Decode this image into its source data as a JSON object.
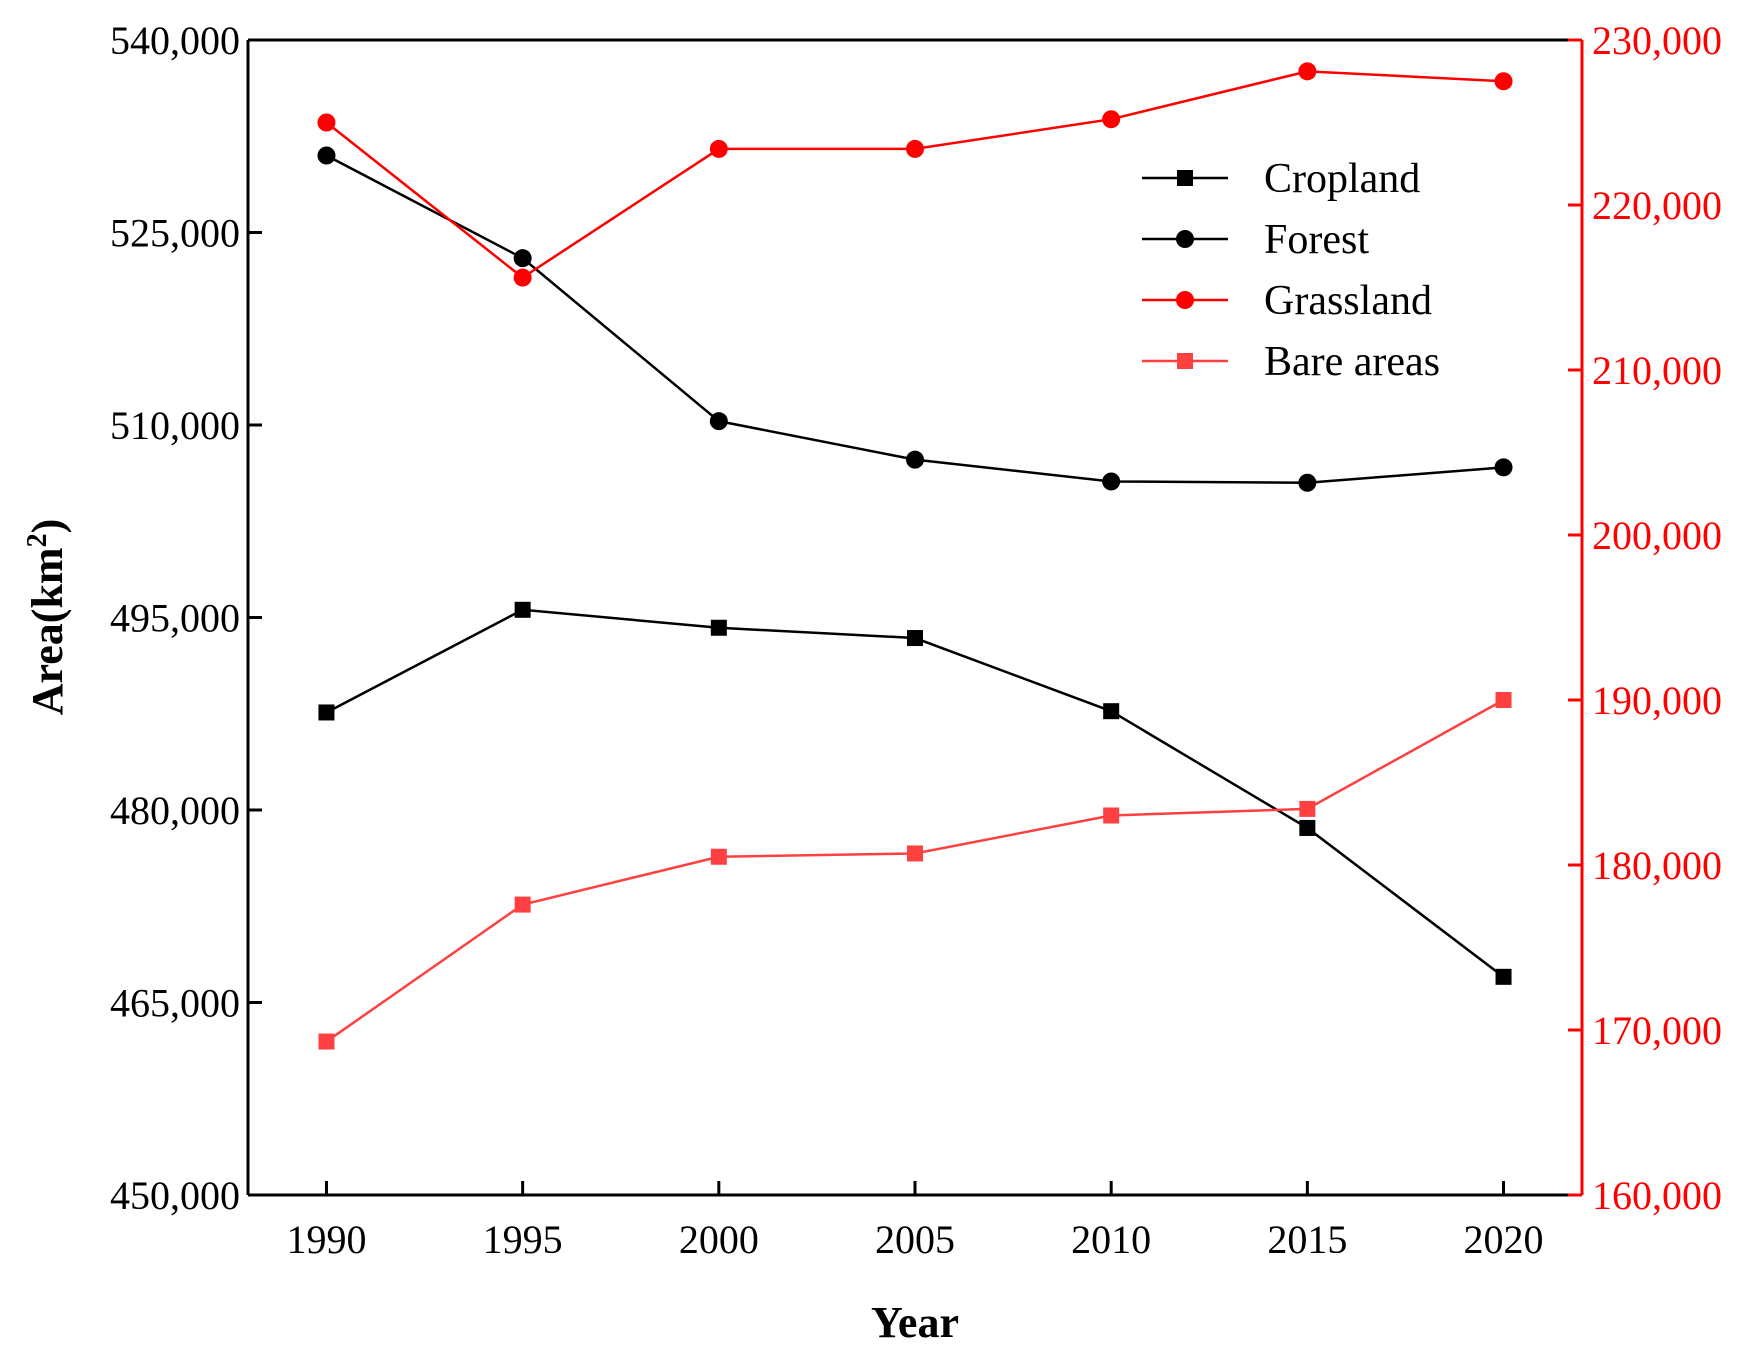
{
  "chart_data": {
    "type": "line",
    "xlabel": "Year",
    "ylabel": "Area(km",
    "ylabel_superscript": "2",
    "ylabel_close": ")",
    "x": [
      1990,
      1995,
      2000,
      2005,
      2010,
      2015,
      2020
    ],
    "x_tick_labels": [
      "1990",
      "1995",
      "2000",
      "2005",
      "2010",
      "2015",
      "2020"
    ],
    "xlim": [
      1988,
      2022
    ],
    "y_left": {
      "range": [
        450000,
        540000
      ],
      "tick_labels": [
        "450,000",
        "465,000",
        "480,000",
        "495,000",
        "510,000",
        "525,000",
        "540,000"
      ],
      "ticks": [
        450000,
        465000,
        480000,
        495000,
        510000,
        525000,
        540000
      ],
      "color": "#000000"
    },
    "y_right": {
      "range": [
        160000,
        230000
      ],
      "tick_labels": [
        "160,000",
        "170,000",
        "180,000",
        "190,000",
        "200,000",
        "210,000",
        "220,000",
        "230,000"
      ],
      "ticks": [
        160000,
        170000,
        180000,
        190000,
        200000,
        210000,
        220000,
        230000
      ],
      "color": "#ff0000"
    },
    "series": [
      {
        "name": "Cropland",
        "axis": "left",
        "marker": "square",
        "color": "#000000",
        "values": [
          487600,
          495600,
          494200,
          493400,
          487700,
          478600,
          467000
        ]
      },
      {
        "name": "Forest",
        "axis": "left",
        "marker": "circle",
        "color": "#000000",
        "values": [
          531000,
          523000,
          510300,
          507300,
          505600,
          505500,
          506700
        ]
      },
      {
        "name": "Grassland",
        "axis": "right",
        "marker": "circle",
        "color": "#ff0000",
        "values": [
          225000,
          215600,
          223400,
          223400,
          225200,
          228100,
          227500
        ]
      },
      {
        "name": "Bare areas",
        "axis": "right",
        "marker": "square",
        "color": "#ff4040",
        "values": [
          169300,
          177600,
          180500,
          180700,
          183000,
          183400,
          190000
        ]
      }
    ],
    "legend": {
      "position": "top-right",
      "entries": [
        "Cropland",
        "Forest",
        "Grassland",
        "Bare areas"
      ]
    },
    "grid": false
  }
}
